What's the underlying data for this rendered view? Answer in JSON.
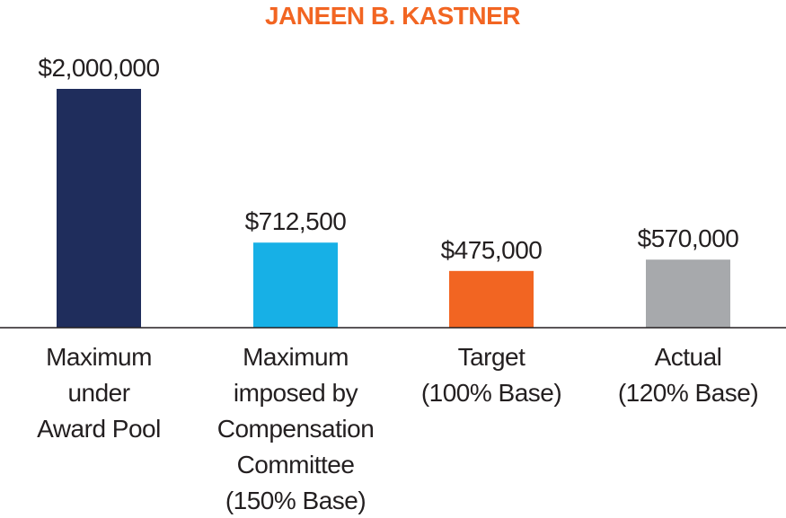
{
  "chart_data": {
    "type": "bar",
    "title": "JANEEN B. KASTNER",
    "title_color": "#f26522",
    "categories": [
      [
        "Maximum",
        "under",
        "Award Pool"
      ],
      [
        "Maximum",
        "imposed by",
        "Compensation",
        "Committee",
        "(150% Base)"
      ],
      [
        "Target",
        "(100% Base)"
      ],
      [
        "Actual",
        "(120% Base)"
      ]
    ],
    "values": [
      2000000,
      712500,
      475000,
      570000
    ],
    "value_labels": [
      "$2,000,000",
      "$712,500",
      "$475,000",
      "$570,000"
    ],
    "colors": [
      "#1f2d5c",
      "#17b0e6",
      "#f26522",
      "#a7a9ac"
    ],
    "ylim": [
      0,
      2000000
    ],
    "grid": false,
    "legend": "none"
  }
}
